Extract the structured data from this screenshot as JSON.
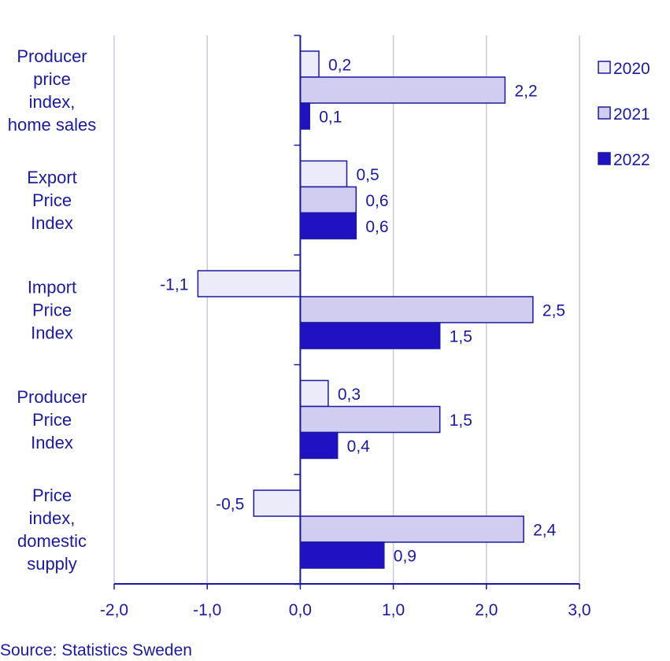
{
  "chart_data": {
    "type": "bar",
    "orientation": "horizontal",
    "categories": [
      [
        "Producer",
        "price",
        "index,",
        "home sales"
      ],
      [
        "Export",
        "Price",
        "Index"
      ],
      [
        "Import",
        "Price",
        "Index"
      ],
      [
        "Producer",
        "Price",
        "Index"
      ],
      [
        "Price",
        "index,",
        "domestic",
        "supply"
      ]
    ],
    "series": [
      {
        "name": "2020",
        "values": [
          0.2,
          0.5,
          -1.1,
          0.3,
          -0.5
        ],
        "labels": [
          "0,2",
          "0,5",
          "-1,1",
          "0,3",
          "-0,5"
        ]
      },
      {
        "name": "2021",
        "values": [
          2.2,
          0.6,
          2.5,
          1.5,
          2.4
        ],
        "labels": [
          "2,2",
          "0,6",
          "2,5",
          "1,5",
          "2,4"
        ]
      },
      {
        "name": "2022",
        "values": [
          0.1,
          0.6,
          1.5,
          0.4,
          0.9
        ],
        "labels": [
          "0,1",
          "0,6",
          "1,5",
          "0,4",
          "0,9"
        ]
      }
    ],
    "xlim": [
      -2.0,
      3.0
    ],
    "xticks": [
      -2.0,
      -1.0,
      0.0,
      1.0,
      2.0,
      3.0
    ],
    "xtick_labels": [
      "-2,0",
      "-1,0",
      "0,0",
      "1,0",
      "2,0",
      "3,0"
    ],
    "grid": "vertical",
    "legend_position": "right"
  },
  "colors": {
    "text": "#1a1a9e",
    "bar_2020": "#ebebfa",
    "bar_2021": "#d0cdf0",
    "bar_2022": "#2012c0",
    "bar_edge": "#1a1a9e",
    "grid": "#c8c8e4",
    "axis": "#1a1a9e"
  },
  "source": "Source: Statistics Sweden"
}
